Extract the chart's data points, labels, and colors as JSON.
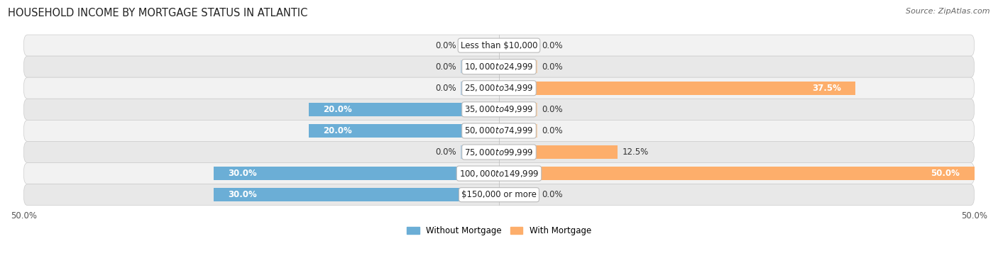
{
  "title": "HOUSEHOLD INCOME BY MORTGAGE STATUS IN ATLANTIC",
  "source": "Source: ZipAtlas.com",
  "categories": [
    "Less than $10,000",
    "$10,000 to $24,999",
    "$25,000 to $34,999",
    "$35,000 to $49,999",
    "$50,000 to $74,999",
    "$75,000 to $99,999",
    "$100,000 to $149,999",
    "$150,000 or more"
  ],
  "without_mortgage": [
    0.0,
    0.0,
    0.0,
    20.0,
    20.0,
    0.0,
    30.0,
    30.0
  ],
  "with_mortgage": [
    0.0,
    0.0,
    37.5,
    0.0,
    0.0,
    12.5,
    50.0,
    0.0
  ],
  "color_without": "#6baed6",
  "color_without_stub": "#b0cfe8",
  "color_with": "#fdae6b",
  "color_with_stub": "#fdd0a2",
  "xlim": 50.0,
  "stub_size": 4.0,
  "title_fontsize": 10.5,
  "source_fontsize": 8,
  "label_fontsize": 8.5,
  "tick_fontsize": 8.5,
  "bar_height": 0.62,
  "legend_fontsize": 8.5,
  "row_colors": [
    "#f2f2f2",
    "#e8e8e8"
  ],
  "row_edge_color": "#cccccc"
}
